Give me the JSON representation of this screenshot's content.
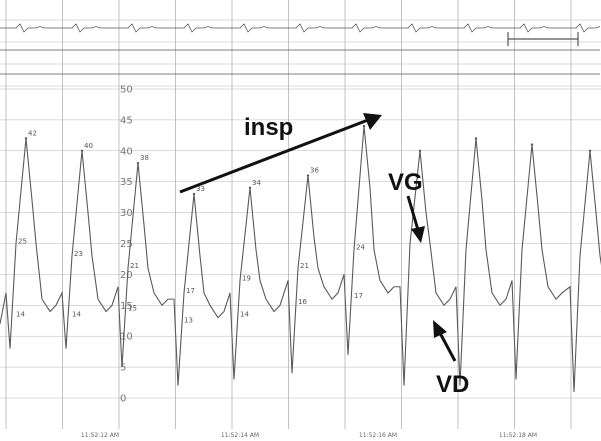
{
  "chart_data": {
    "type": "line",
    "title": "",
    "xlabel": "",
    "ylabel": "",
    "ylim": [
      0,
      50
    ],
    "yticks": [
      0,
      5,
      10,
      15,
      20,
      25,
      30,
      35,
      40,
      45,
      50
    ],
    "time_labels": [
      "11:52:12 AM",
      "11:52:14 AM",
      "11:52:16 AM",
      "11:52:18 AM"
    ],
    "grid": true,
    "series": [
      {
        "beats": [
          {
            "systolic": 42,
            "notch": 25,
            "diastolic": 14,
            "nadir": 8
          },
          {
            "systolic": 40,
            "notch": 23,
            "diastolic": 14,
            "nadir": 8
          },
          {
            "systolic": 38,
            "notch": 21,
            "diastolic": 15,
            "nadir": 5
          },
          {
            "systolic": 33,
            "notch": 17,
            "diastolic": 13,
            "nadir": 2
          },
          {
            "systolic": 34,
            "notch": 19,
            "diastolic": 14,
            "nadir": 3
          },
          {
            "systolic": 36,
            "notch": 21,
            "diastolic": 16,
            "nadir": 4
          },
          {
            "systolic": 44,
            "notch": 24,
            "diastolic": 17,
            "nadir": 7
          },
          {
            "systolic": 40,
            "notch": 25,
            "diastolic": 15,
            "nadir": 2
          },
          {
            "systolic": 42,
            "notch": 24,
            "diastolic": 15,
            "nadir": 2
          },
          {
            "systolic": 41,
            "notch": 24,
            "diastolic": 16,
            "nadir": 3
          },
          {
            "systolic": 40,
            "notch": 23,
            "diastolic": 15,
            "nadir": 1
          }
        ],
        "labeled_values": [
          {
            "beat": 0,
            "labels": [
              "42",
              "25",
              "14"
            ]
          },
          {
            "beat": 1,
            "labels": [
              "40",
              "23",
              "14"
            ]
          },
          {
            "beat": 2,
            "labels": [
              "38",
              "21",
              "15"
            ]
          },
          {
            "beat": 3,
            "labels": [
              "33",
              "17",
              "13"
            ]
          },
          {
            "beat": 4,
            "labels": [
              "34",
              "19",
              "14"
            ]
          },
          {
            "beat": 5,
            "labels": [
              "36",
              "21",
              "16"
            ]
          },
          {
            "beat": 6,
            "labels": [
              "44",
              "24",
              "17"
            ]
          }
        ]
      }
    ],
    "annotations": [
      {
        "text": "insp"
      },
      {
        "text": "VG"
      },
      {
        "text": "VD"
      }
    ]
  }
}
